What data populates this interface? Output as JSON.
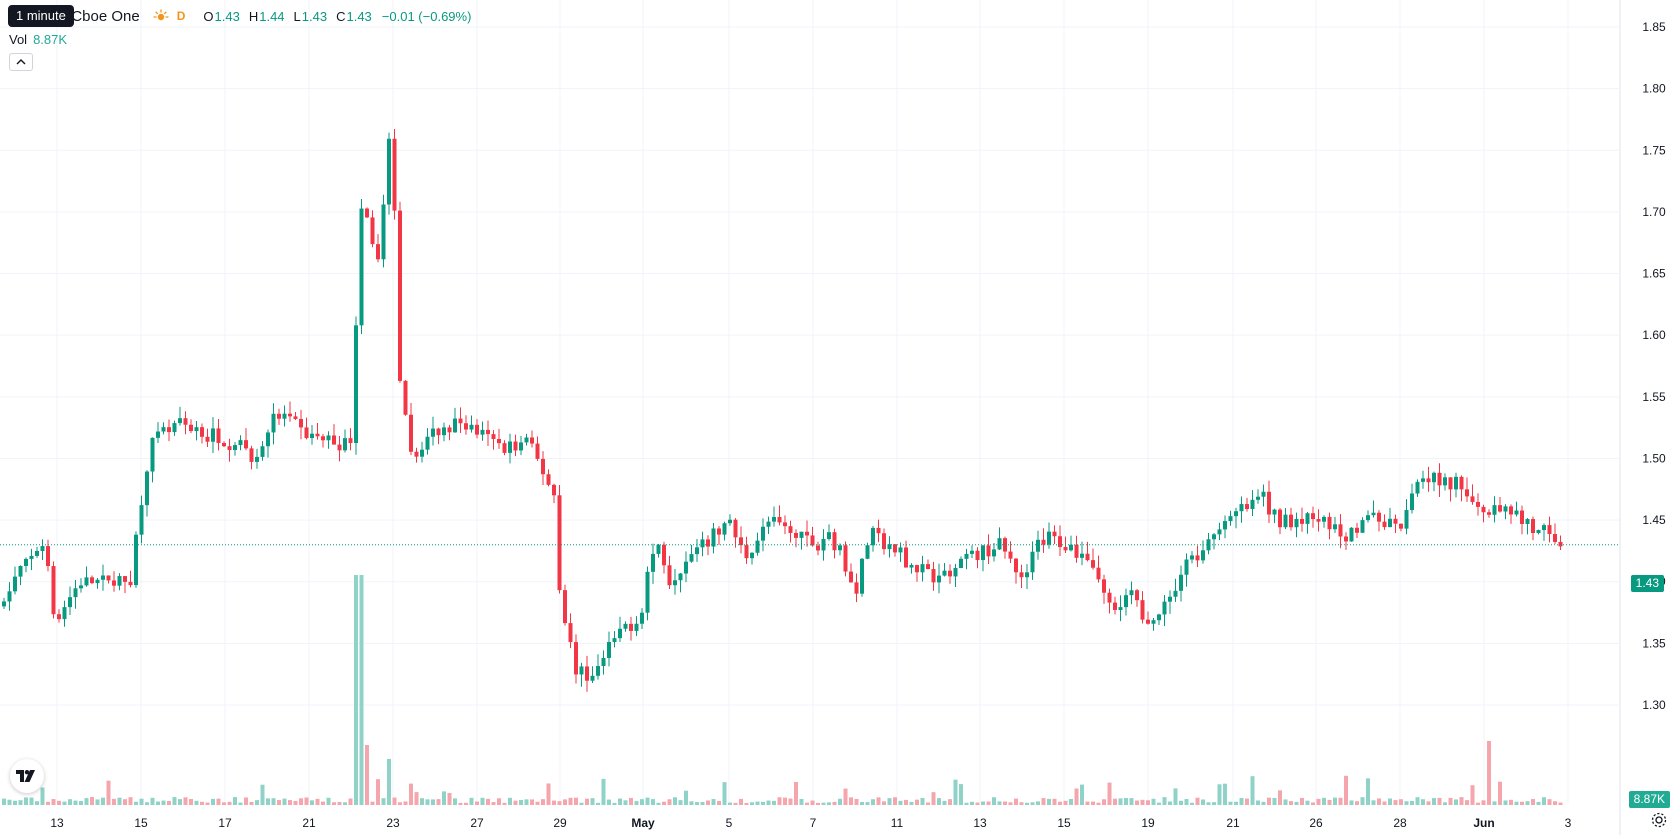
{
  "tooltip": {
    "text": "1 minute"
  },
  "symbol": {
    "title": "nc. · 1h · Cboe One",
    "session_badge": "D"
  },
  "ohlc": {
    "open_key": "O",
    "open": "1.43",
    "high_key": "H",
    "high": "1.44",
    "low_key": "L",
    "low": "1.43",
    "close_key": "C",
    "close": "1.43",
    "change": "−0.01 (−0.69%)"
  },
  "volume_legend": {
    "label": "Vol",
    "value": "8.87K"
  },
  "price_scale": {
    "ticks": [
      "1.85",
      "1.80",
      "1.75",
      "1.70",
      "1.65",
      "1.60",
      "1.55",
      "1.50",
      "1.45",
      "1.40",
      "1.35",
      "1.30"
    ],
    "last_price_label": "1.43",
    "volume_label": "8.87K"
  },
  "time_scale": {
    "ticks": [
      "13",
      "15",
      "17",
      "21",
      "23",
      "27",
      "29",
      "May",
      "5",
      "7",
      "11",
      "13",
      "15",
      "19",
      "21",
      "26",
      "28",
      "Jun",
      "3"
    ]
  },
  "colors": {
    "up": "#089981",
    "down": "#f23645",
    "up_volume": "#8fd3c8",
    "down_volume": "#f5a6ad",
    "grid": "#f0f3fa"
  },
  "icons": {
    "expand": "chevron-up-icon",
    "logo": "tradingview-logo-icon",
    "settings": "gear-icon",
    "session": "sun-icon"
  },
  "chart_data": {
    "type": "candlestick",
    "interval": "1h",
    "ylim": [
      1.28,
      1.86
    ],
    "candles_anchor_points": [
      {
        "x": "13",
        "price": 1.4
      },
      {
        "x": "15",
        "price": 1.45
      },
      {
        "x": "17",
        "price": 1.52
      },
      {
        "x": "21",
        "price": 1.53
      },
      {
        "x": "22",
        "price": 1.77
      },
      {
        "x": "23",
        "price": 1.81
      },
      {
        "x": "23",
        "price": 1.52
      },
      {
        "x": "27",
        "price": 1.52
      },
      {
        "x": "29",
        "price": 1.47
      },
      {
        "x": "29",
        "price": 1.31
      },
      {
        "x": "May",
        "price": 1.42
      },
      {
        "x": "5",
        "price": 1.44
      },
      {
        "x": "7",
        "price": 1.44
      },
      {
        "x": "11",
        "price": 1.42
      },
      {
        "x": "13",
        "price": 1.41
      },
      {
        "x": "15",
        "price": 1.44
      },
      {
        "x": "19",
        "price": 1.37
      },
      {
        "x": "21",
        "price": 1.45
      },
      {
        "x": "26",
        "price": 1.45
      },
      {
        "x": "28",
        "price": 1.45
      },
      {
        "x": "29",
        "price": 1.5
      },
      {
        "x": "Jun",
        "price": 1.45
      },
      {
        "x": "3",
        "price": 1.43
      }
    ],
    "last_price": 1.43,
    "last_volume": "8.87K"
  }
}
